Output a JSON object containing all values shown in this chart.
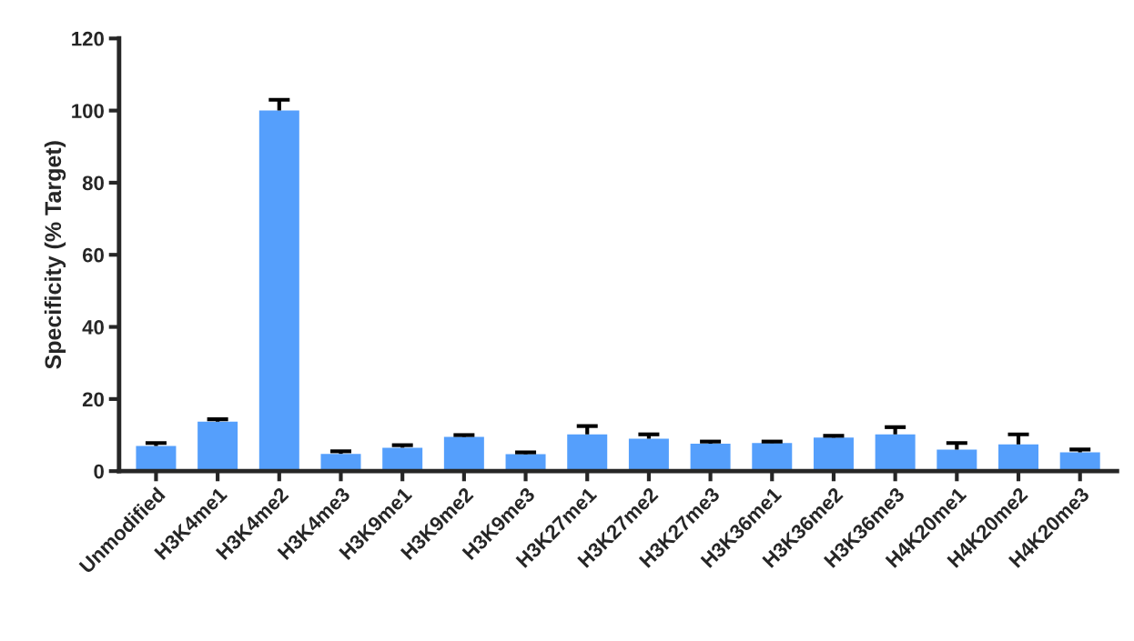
{
  "chart_data": {
    "type": "bar",
    "ylabel": "Specificity (% Target)",
    "categories": [
      "Unmodified",
      "H3K4me1",
      "H3K4me2",
      "H3K4me3",
      "H3K9me1",
      "H3K9me2",
      "H3K9me3",
      "H3K27me1",
      "H3K27me2",
      "H3K27me3",
      "H3K36me1",
      "H3K36me2",
      "H3K36me3",
      "H4K20me1",
      "H4K20me2",
      "H4K20me3"
    ],
    "values": [
      7.0,
      13.7,
      100,
      4.8,
      6.5,
      9.5,
      4.7,
      10.2,
      9.0,
      7.6,
      7.8,
      9.3,
      10.2,
      6.0,
      7.4,
      5.2
    ],
    "errors": [
      [
        7.0,
        7.8
      ],
      [
        13.7,
        14.4
      ],
      [
        100,
        103
      ],
      [
        4.8,
        5.5
      ],
      [
        6.5,
        7.2
      ],
      [
        9.5,
        10
      ],
      [
        4.7,
        5.2
      ],
      [
        10.2,
        12.5
      ],
      [
        9.0,
        10.2
      ],
      [
        7.6,
        8.2
      ],
      [
        7.8,
        8.2
      ],
      [
        9.3,
        9.8
      ],
      [
        10.2,
        12.2
      ],
      [
        6.0,
        7.8
      ],
      [
        7.4,
        10.2
      ],
      [
        5.2,
        6.0
      ]
    ],
    "color": "#559ffc",
    "ylim": [
      0,
      120
    ],
    "yticks": [
      0,
      20,
      40,
      60,
      80,
      100,
      120
    ],
    "grid": false
  }
}
